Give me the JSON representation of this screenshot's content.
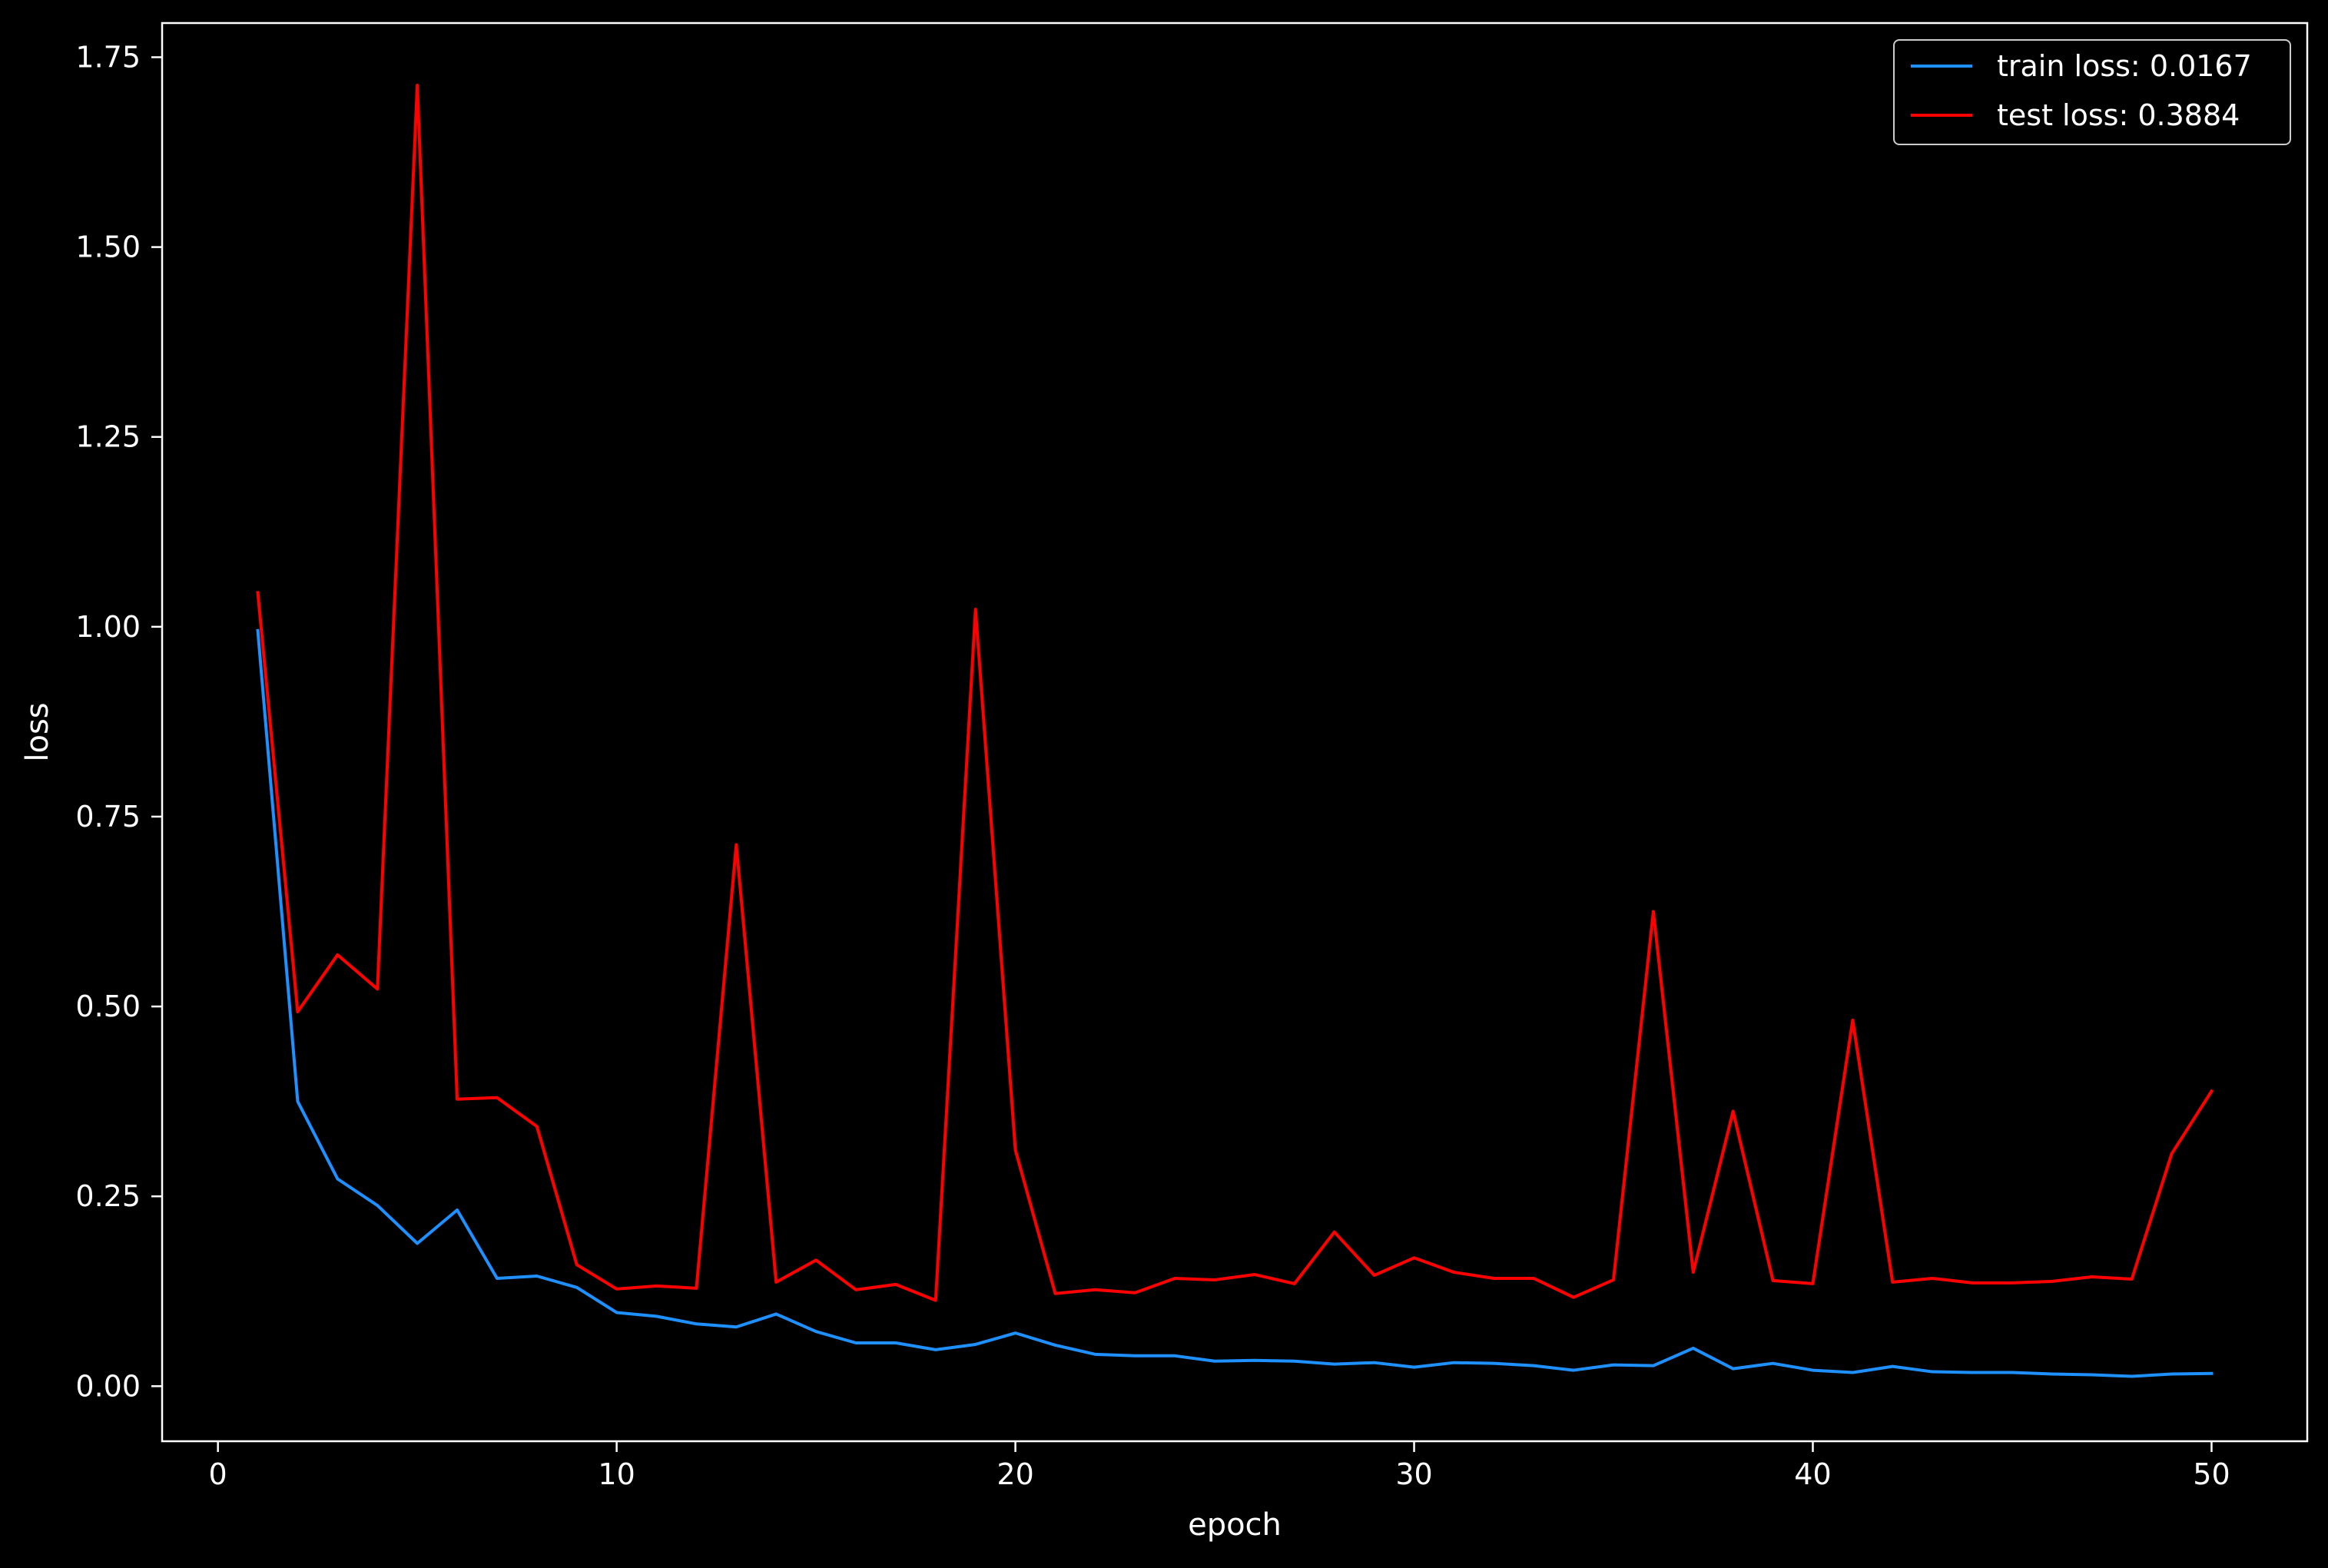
{
  "chart_data": {
    "type": "line",
    "xlabel": "epoch",
    "ylabel": "loss",
    "xlim": [
      -1.4,
      52.4
    ],
    "ylim": [
      -0.0725,
      1.795
    ],
    "x_ticks": [
      0,
      10,
      20,
      30,
      40,
      50
    ],
    "x_tick_labels": [
      "0",
      "10",
      "20",
      "30",
      "40",
      "50"
    ],
    "y_ticks": [
      0.0,
      0.25,
      0.5,
      0.75,
      1.0,
      1.25,
      1.5,
      1.75
    ],
    "y_tick_labels": [
      "0.00",
      "0.25",
      "0.50",
      "0.75",
      "1.00",
      "1.25",
      "1.50",
      "1.75"
    ],
    "grid": false,
    "legend_position": "top-right",
    "background": "#000000",
    "foreground": "#ffffff",
    "x": [
      1,
      2,
      3,
      4,
      5,
      6,
      7,
      8,
      9,
      10,
      11,
      12,
      13,
      14,
      15,
      16,
      17,
      18,
      19,
      20,
      21,
      22,
      23,
      24,
      25,
      26,
      27,
      28,
      29,
      30,
      31,
      32,
      33,
      34,
      35,
      36,
      37,
      38,
      39,
      40,
      41,
      42,
      43,
      44,
      45,
      46,
      47,
      48,
      49,
      50
    ],
    "series": [
      {
        "name": "train loss: 0.0167",
        "color": "#1e90ff",
        "values": [
          0.995,
          0.375,
          0.273,
          0.238,
          0.188,
          0.232,
          0.142,
          0.145,
          0.13,
          0.097,
          0.092,
          0.082,
          0.078,
          0.095,
          0.072,
          0.057,
          0.057,
          0.048,
          0.055,
          0.07,
          0.054,
          0.042,
          0.04,
          0.04,
          0.033,
          0.034,
          0.033,
          0.029,
          0.031,
          0.025,
          0.031,
          0.03,
          0.027,
          0.021,
          0.028,
          0.027,
          0.05,
          0.023,
          0.03,
          0.021,
          0.018,
          0.026,
          0.019,
          0.018,
          0.018,
          0.016,
          0.015,
          0.013,
          0.016,
          0.0167
        ]
      },
      {
        "name": "test loss: 0.3884",
        "color": "#ff0000",
        "values": [
          1.045,
          0.493,
          0.568,
          0.523,
          1.713,
          0.378,
          0.38,
          0.342,
          0.16,
          0.128,
          0.132,
          0.129,
          0.713,
          0.137,
          0.166,
          0.127,
          0.134,
          0.113,
          1.023,
          0.311,
          0.122,
          0.127,
          0.123,
          0.142,
          0.14,
          0.147,
          0.135,
          0.203,
          0.146,
          0.169,
          0.15,
          0.142,
          0.142,
          0.117,
          0.14,
          0.625,
          0.15,
          0.362,
          0.139,
          0.135,
          0.482,
          0.137,
          0.142,
          0.136,
          0.136,
          0.138,
          0.144,
          0.141,
          0.306,
          0.3884
        ]
      }
    ]
  }
}
